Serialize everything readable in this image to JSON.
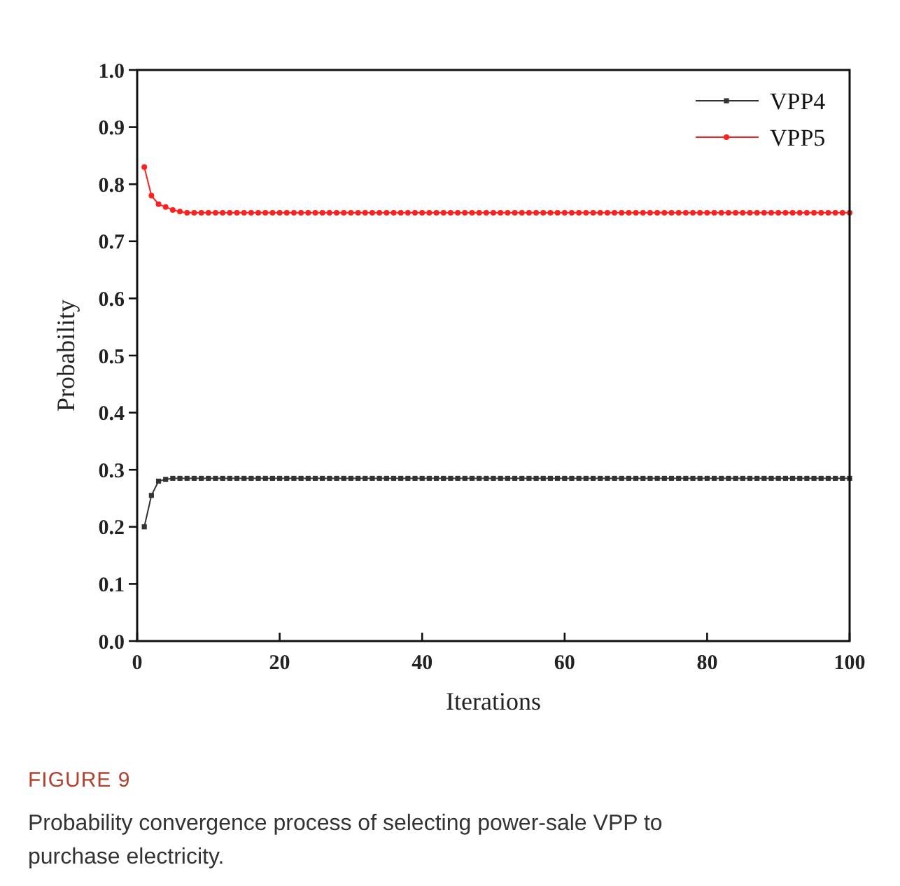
{
  "chart_data": {
    "type": "line",
    "xlabel": "Iterations",
    "ylabel": "Probability",
    "annotations": [
      "FIGURE 9",
      "Probability convergence process of selecting power-sale VPP to purchase electricity."
    ],
    "x": [
      1,
      2,
      3,
      4,
      5,
      6,
      7,
      8,
      9,
      10,
      11,
      12,
      13,
      14,
      15,
      16,
      17,
      18,
      19,
      20,
      21,
      22,
      23,
      24,
      25,
      26,
      27,
      28,
      29,
      30,
      31,
      32,
      33,
      34,
      35,
      36,
      37,
      38,
      39,
      40,
      41,
      42,
      43,
      44,
      45,
      46,
      47,
      48,
      49,
      50,
      51,
      52,
      53,
      54,
      55,
      56,
      57,
      58,
      59,
      60,
      61,
      62,
      63,
      64,
      65,
      66,
      67,
      68,
      69,
      70,
      71,
      72,
      73,
      74,
      75,
      76,
      77,
      78,
      79,
      80,
      81,
      82,
      83,
      84,
      85,
      86,
      87,
      88,
      89,
      90,
      91,
      92,
      93,
      94,
      95,
      96,
      97,
      98,
      99,
      100
    ],
    "series": [
      {
        "name": "VPP4",
        "color": "#333333",
        "marker": "square",
        "values": [
          0.2,
          0.255,
          0.28,
          0.283,
          0.285,
          0.285,
          0.285,
          0.285,
          0.285,
          0.285,
          0.285,
          0.285,
          0.285,
          0.285,
          0.285,
          0.285,
          0.285,
          0.285,
          0.285,
          0.285,
          0.285,
          0.285,
          0.285,
          0.285,
          0.285,
          0.285,
          0.285,
          0.285,
          0.285,
          0.285,
          0.285,
          0.285,
          0.285,
          0.285,
          0.285,
          0.285,
          0.285,
          0.285,
          0.285,
          0.285,
          0.285,
          0.285,
          0.285,
          0.285,
          0.285,
          0.285,
          0.285,
          0.285,
          0.285,
          0.285,
          0.285,
          0.285,
          0.285,
          0.285,
          0.285,
          0.285,
          0.285,
          0.285,
          0.285,
          0.285,
          0.285,
          0.285,
          0.285,
          0.285,
          0.285,
          0.285,
          0.285,
          0.285,
          0.285,
          0.285,
          0.285,
          0.285,
          0.285,
          0.285,
          0.285,
          0.285,
          0.285,
          0.285,
          0.285,
          0.285,
          0.285,
          0.285,
          0.285,
          0.285,
          0.285,
          0.285,
          0.285,
          0.285,
          0.285,
          0.285,
          0.285,
          0.285,
          0.285,
          0.285,
          0.285,
          0.285,
          0.285,
          0.285,
          0.285,
          0.285
        ]
      },
      {
        "name": "VPP5",
        "color": "#ff2020",
        "marker": "circle",
        "values": [
          0.83,
          0.78,
          0.765,
          0.76,
          0.755,
          0.752,
          0.75,
          0.75,
          0.75,
          0.75,
          0.75,
          0.75,
          0.75,
          0.75,
          0.75,
          0.75,
          0.75,
          0.75,
          0.75,
          0.75,
          0.75,
          0.75,
          0.75,
          0.75,
          0.75,
          0.75,
          0.75,
          0.75,
          0.75,
          0.75,
          0.75,
          0.75,
          0.75,
          0.75,
          0.75,
          0.75,
          0.75,
          0.75,
          0.75,
          0.75,
          0.75,
          0.75,
          0.75,
          0.75,
          0.75,
          0.75,
          0.75,
          0.75,
          0.75,
          0.75,
          0.75,
          0.75,
          0.75,
          0.75,
          0.75,
          0.75,
          0.75,
          0.75,
          0.75,
          0.75,
          0.75,
          0.75,
          0.75,
          0.75,
          0.75,
          0.75,
          0.75,
          0.75,
          0.75,
          0.75,
          0.75,
          0.75,
          0.75,
          0.75,
          0.75,
          0.75,
          0.75,
          0.75,
          0.75,
          0.75,
          0.75,
          0.75,
          0.75,
          0.75,
          0.75,
          0.75,
          0.75,
          0.75,
          0.75,
          0.75,
          0.75,
          0.75,
          0.75,
          0.75,
          0.75,
          0.75,
          0.75,
          0.75,
          0.75,
          0.75
        ]
      }
    ],
    "xlim": [
      0,
      100
    ],
    "xticks": [
      0,
      20,
      40,
      60,
      80,
      100
    ],
    "ylim": [
      0,
      1
    ],
    "yticks": [
      {
        "value": 0,
        "label": "0.0"
      },
      0.1,
      0.2,
      0.3,
      0.4,
      0.5,
      0.6,
      0.7,
      0.8,
      0.9,
      {
        "value": 1,
        "label": "1.0"
      }
    ],
    "legend": "top right",
    "line_style": "solid"
  }
}
